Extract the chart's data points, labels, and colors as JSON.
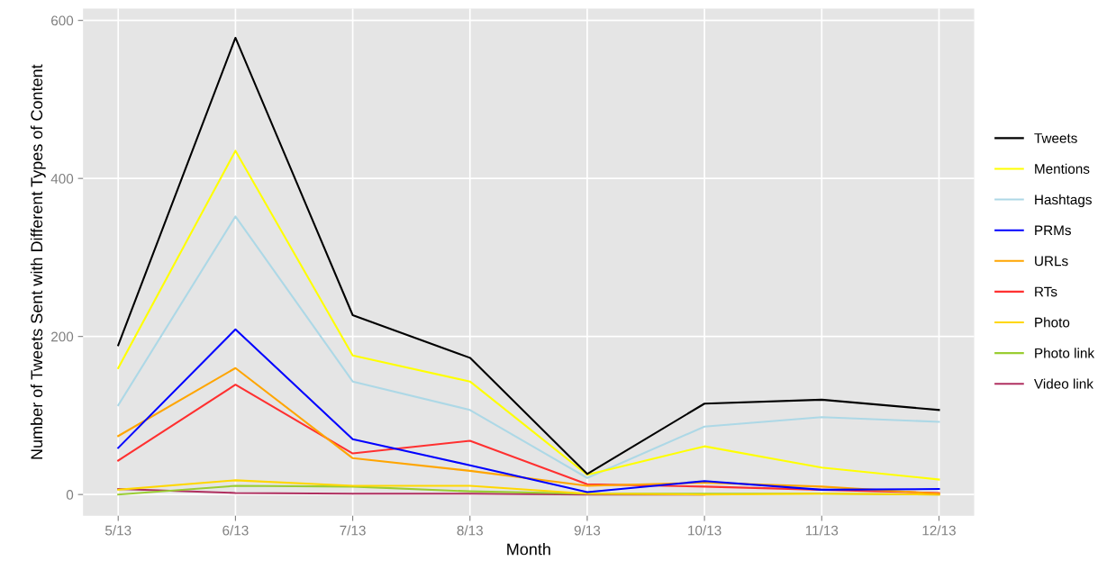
{
  "chart_data": {
    "type": "line",
    "xlabel": "Month",
    "ylabel": "Number of Tweets Sent with Different Types of Content",
    "categories": [
      "5/13",
      "6/13",
      "7/13",
      "8/13",
      "9/13",
      "10/13",
      "11/13",
      "12/13"
    ],
    "series": [
      {
        "name": "Tweets",
        "color": "#000000",
        "values": [
          189,
          578,
          227,
          173,
          26,
          115,
          120,
          107
        ]
      },
      {
        "name": "Mentions",
        "color": "#ffff00",
        "values": [
          160,
          435,
          176,
          143,
          25,
          61,
          34,
          19
        ]
      },
      {
        "name": "Hashtags",
        "color": "#add8e6",
        "values": [
          113,
          352,
          143,
          107,
          21,
          86,
          98,
          92
        ]
      },
      {
        "name": "PRMs",
        "color": "#0000ff",
        "values": [
          59,
          209,
          70,
          37,
          3,
          17,
          6,
          7
        ]
      },
      {
        "name": "URLs",
        "color": "#ffa500",
        "values": [
          74,
          160,
          46,
          30,
          11,
          15,
          10,
          1
        ]
      },
      {
        "name": "RTs",
        "color": "#ff3030",
        "values": [
          43,
          139,
          52,
          68,
          13,
          10,
          6,
          2
        ]
      },
      {
        "name": "Photo",
        "color": "#ffd700",
        "values": [
          6,
          18,
          11,
          11,
          1,
          0,
          1,
          0
        ]
      },
      {
        "name": "Photo link",
        "color": "#9acd32",
        "values": [
          0,
          11,
          10,
          4,
          1,
          1,
          1,
          0
        ]
      },
      {
        "name": "Video link",
        "color": "#b03060",
        "values": [
          7,
          2,
          1,
          1,
          0,
          0,
          null,
          null
        ]
      }
    ],
    "ylim": [
      -27,
      615
    ],
    "yticks": [
      0,
      200,
      400,
      600
    ],
    "grid": true,
    "legend": "right"
  }
}
